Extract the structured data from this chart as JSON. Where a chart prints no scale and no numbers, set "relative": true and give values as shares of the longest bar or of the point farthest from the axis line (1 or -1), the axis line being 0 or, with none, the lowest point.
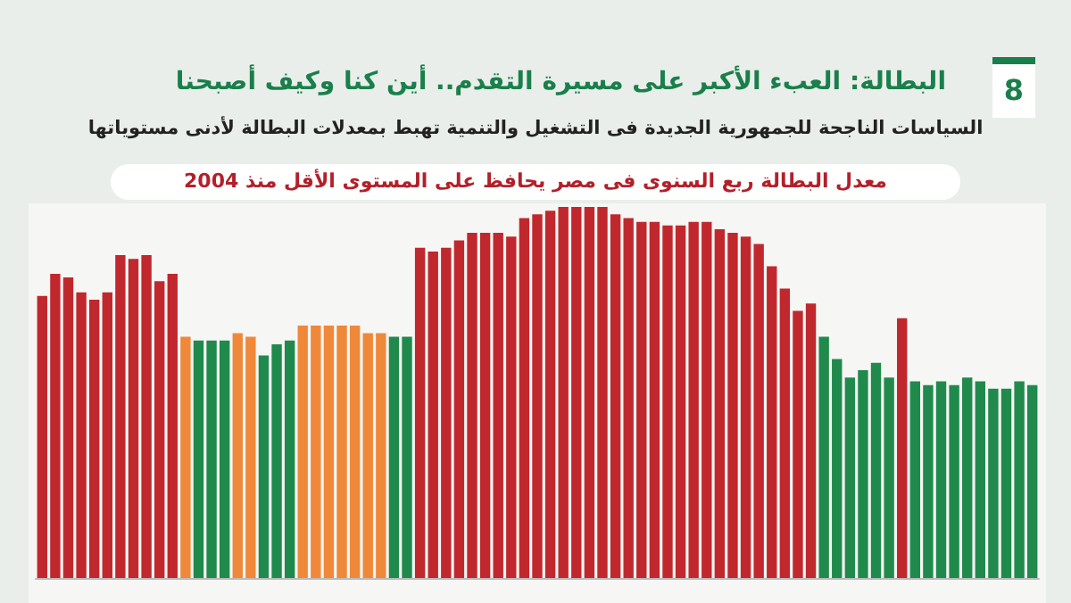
{
  "chart_data": {
    "type": "bar",
    "relative": true,
    "title": "البطالة: العبء الأكبر على مسيرة التقدم.. أين كنا وكيف أصبحنا",
    "subtitle": "السياسات الناجحة للجمهورية الجديدة فى التشغيل والتنمية تهبط بمعدلات البطالة لأدنى مستوياتها",
    "annotations": [
      "معدل البطالة ربع السنوى فى مصر يحافظ على المستوى الأقل منذ 2004",
      "8"
    ],
    "categories": [
      null,
      null,
      null,
      null,
      null,
      null,
      null,
      null,
      null,
      null,
      null,
      null,
      null,
      null,
      null,
      null,
      null,
      null,
      null,
      null,
      null,
      null,
      null,
      null,
      null,
      null,
      null,
      null,
      null,
      null,
      null,
      null,
      null,
      null,
      null,
      null,
      null,
      null,
      null,
      null,
      null,
      null,
      null,
      null,
      null,
      null,
      null,
      null,
      null,
      null,
      null,
      null,
      null,
      null,
      null,
      null,
      null,
      null,
      null,
      null,
      null,
      null,
      null,
      null,
      null,
      null,
      null,
      null,
      null,
      null,
      null,
      null,
      null,
      null,
      null,
      null,
      null
    ],
    "values": [
      0.76,
      0.82,
      0.81,
      0.77,
      0.75,
      0.77,
      0.87,
      0.86,
      0.87,
      0.8,
      0.82,
      0.65,
      0.64,
      0.64,
      0.64,
      0.66,
      0.65,
      0.6,
      0.63,
      0.64,
      0.68,
      0.68,
      0.68,
      0.68,
      0.68,
      0.66,
      0.66,
      0.65,
      0.65,
      0.89,
      0.88,
      0.89,
      0.91,
      0.93,
      0.93,
      0.93,
      0.92,
      0.97,
      0.98,
      0.99,
      1,
      1,
      1,
      1,
      0.98,
      0.97,
      0.96,
      0.96,
      0.95,
      0.95,
      0.96,
      0.96,
      0.94,
      0.93,
      0.92,
      0.9,
      0.84,
      0.78,
      0.72,
      0.74,
      0.65,
      0.59,
      0.54,
      0.56,
      0.58,
      0.54,
      0.7,
      0.53,
      0.52,
      0.53,
      0.52,
      0.54,
      0.53,
      0.51,
      0.51,
      0.53,
      0.52
    ],
    "colors": [
      "#c0282d",
      "#c0282d",
      "#c0282d",
      "#c0282d",
      "#c0282d",
      "#c0282d",
      "#c0282d",
      "#c0282d",
      "#c0282d",
      "#c0282d",
      "#c0282d",
      "#f0883a",
      "#1f8a4c",
      "#1f8a4c",
      "#1f8a4c",
      "#f0883a",
      "#f0883a",
      "#1f8a4c",
      "#1f8a4c",
      "#1f8a4c",
      "#f0883a",
      "#f0883a",
      "#f0883a",
      "#f0883a",
      "#f0883a",
      "#f0883a",
      "#f0883a",
      "#1f8a4c",
      "#1f8a4c",
      "#c0282d",
      "#c0282d",
      "#c0282d",
      "#c0282d",
      "#c0282d",
      "#c0282d",
      "#c0282d",
      "#c0282d",
      "#c0282d",
      "#c0282d",
      "#c0282d",
      "#c0282d",
      "#c0282d",
      "#c0282d",
      "#c0282d",
      "#c0282d",
      "#c0282d",
      "#c0282d",
      "#c0282d",
      "#c0282d",
      "#c0282d",
      "#c0282d",
      "#c0282d",
      "#c0282d",
      "#c0282d",
      "#c0282d",
      "#c0282d",
      "#c0282d",
      "#c0282d",
      "#c0282d",
      "#c0282d",
      "#1f8a4c",
      "#1f8a4c",
      "#1f8a4c",
      "#1f8a4c",
      "#1f8a4c",
      "#1f8a4c",
      "#c0282d",
      "#1f8a4c",
      "#1f8a4c",
      "#1f8a4c",
      "#1f8a4c",
      "#1f8a4c",
      "#1f8a4c",
      "#1f8a4c",
      "#1f8a4c",
      "#1f8a4c",
      "#1f8a4c"
    ]
  }
}
